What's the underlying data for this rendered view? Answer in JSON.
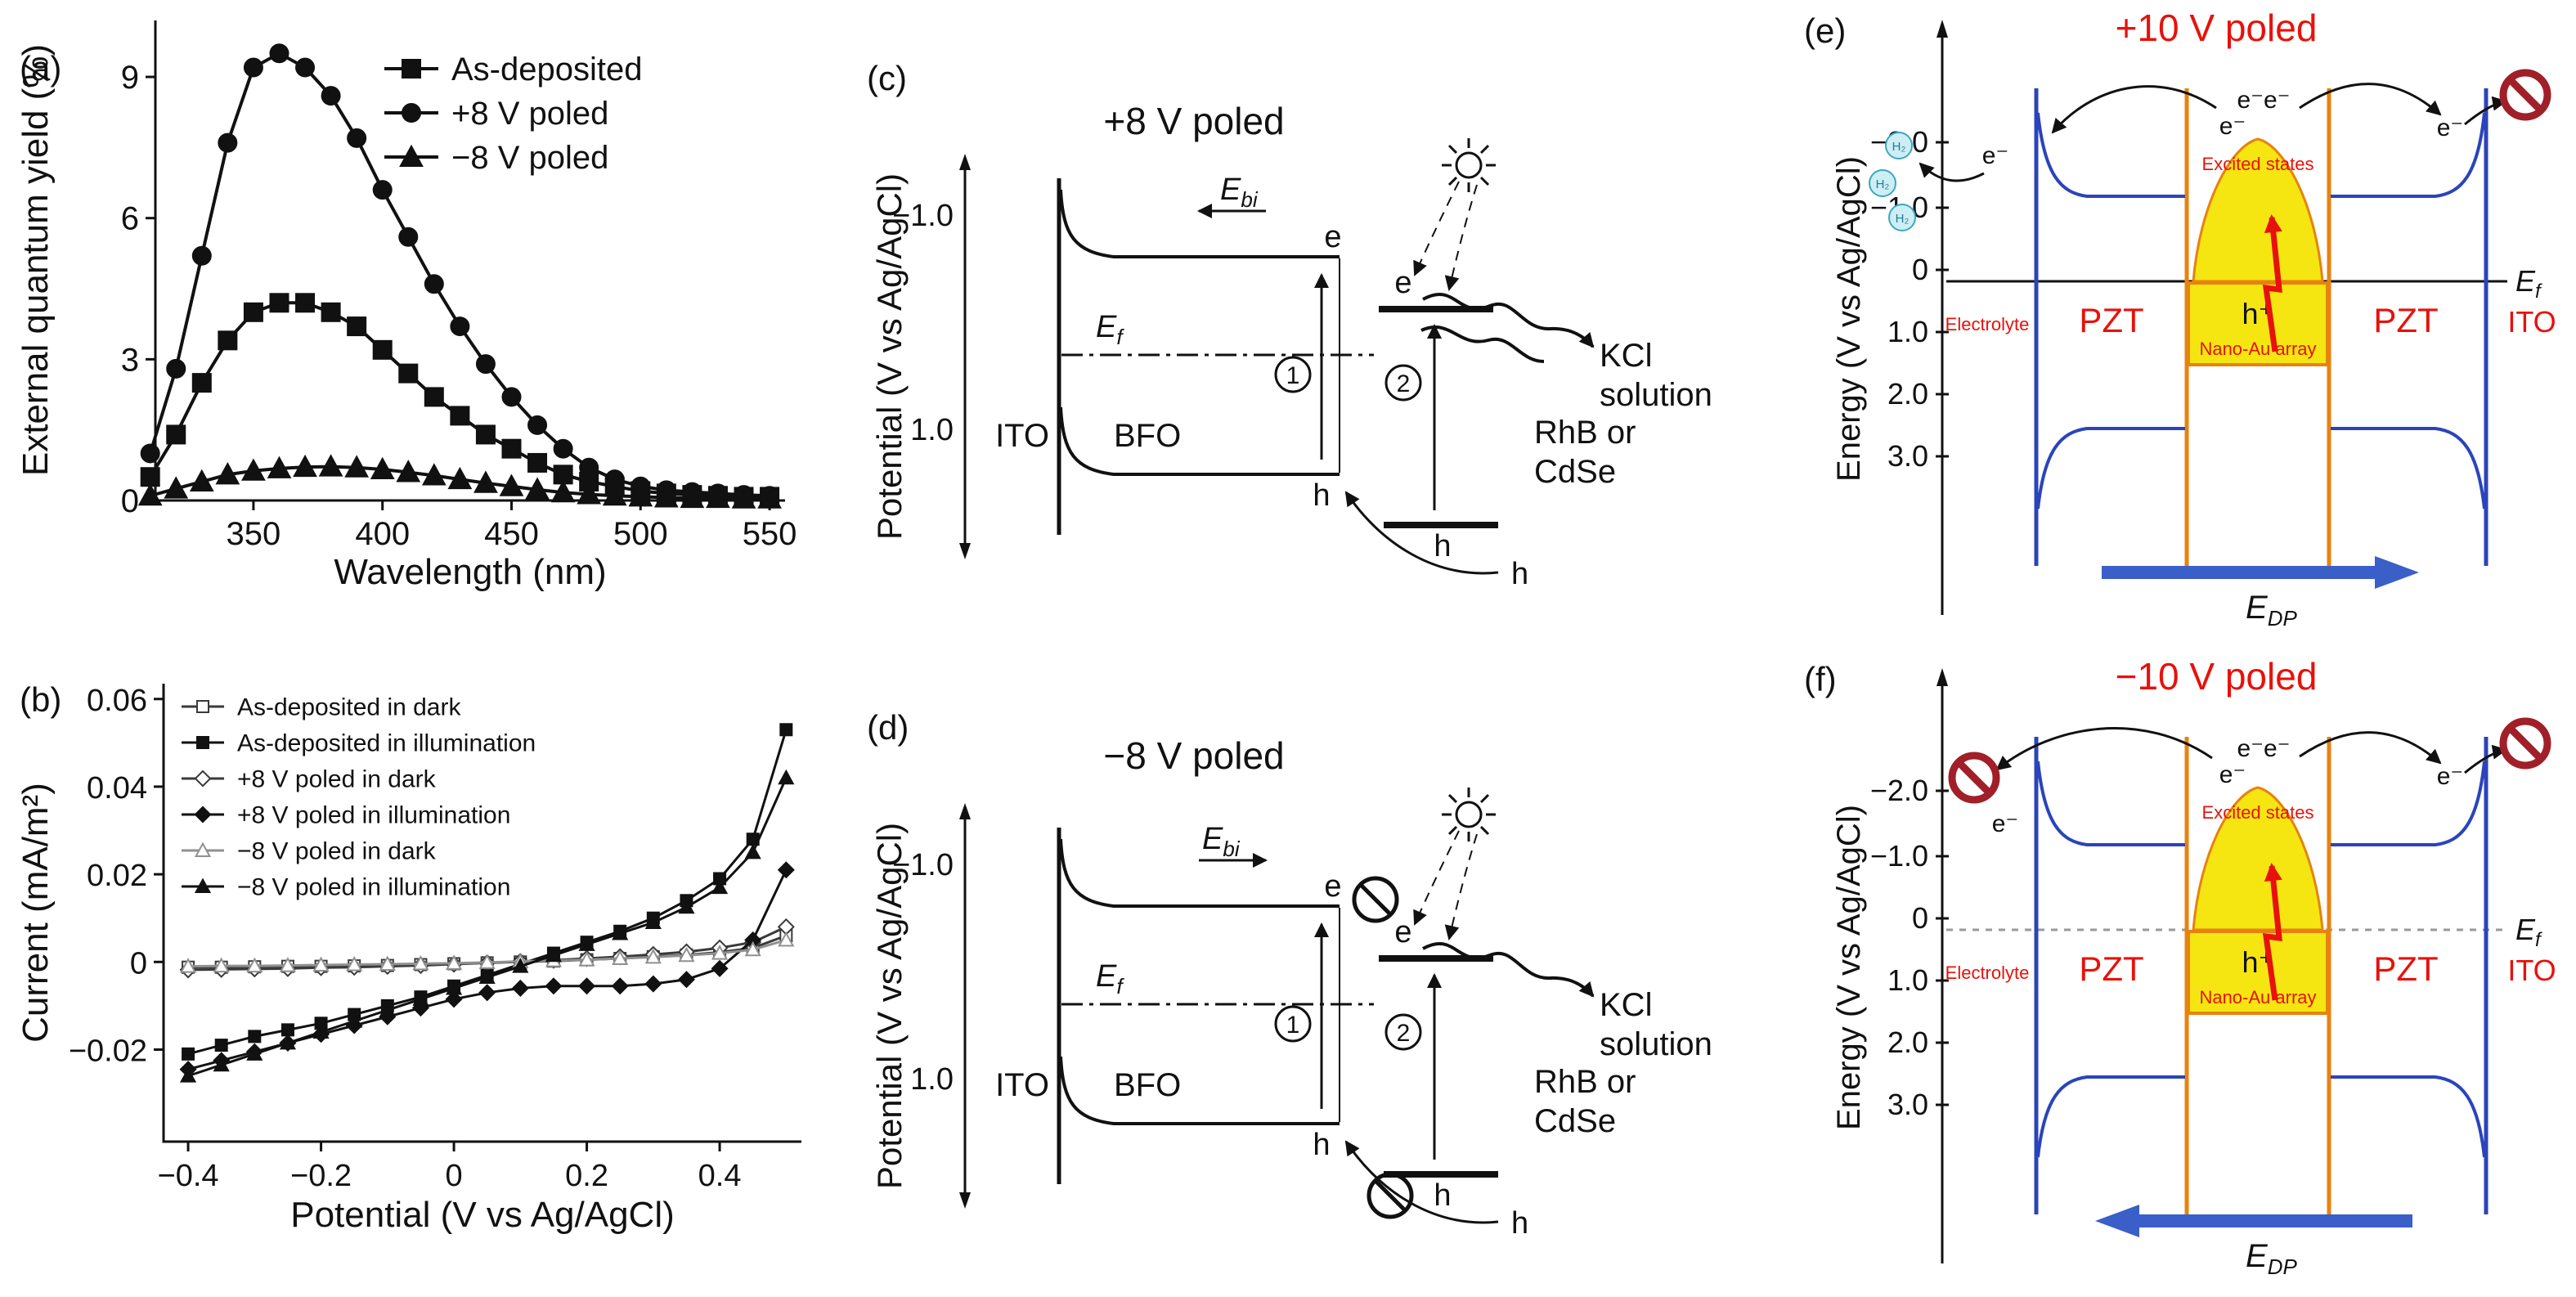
{
  "colors": {
    "accent_red": "#e8110b",
    "band_blue": "#2b44bb",
    "interface_orange": "#e8820f",
    "gold_yellow": "#f5e612",
    "no_entry_red": "#a11f28",
    "edp_arrow_blue": "#3a5fc8",
    "h2_bubble_fill": "#cdeef5",
    "ink": "#111111"
  },
  "panels": {
    "c": {
      "label": "(c)",
      "title": "+8 V poled",
      "y_axis": "Potential (V vs Ag/AgCl)",
      "tick_top": "−1.0",
      "tick_bottom": "1.0",
      "e_symbol": "E",
      "ebi_sub": "bi",
      "ef_sub": "f",
      "ito": "ITO",
      "bfo": "BFO",
      "electron": "e",
      "hole": "h",
      "step1": "1",
      "step2": "2",
      "acceptor_line1": "RhB or",
      "acceptor_line2": "CdSe",
      "solution_line1": "KCl",
      "solution_line2": "solution"
    },
    "d": {
      "label": "(d)",
      "title": "−8 V poled",
      "y_axis": "Potential (V vs Ag/AgCl)",
      "tick_top": "−1.0",
      "tick_bottom": "1.0",
      "e_symbol": "E",
      "ebi_sub": "bi",
      "ef_sub": "f",
      "ito": "ITO",
      "bfo": "BFO",
      "electron": "e",
      "hole": "h",
      "step1": "1",
      "step2": "2",
      "acceptor_line1": "RhB or",
      "acceptor_line2": "CdSe",
      "solution_line1": "KCl",
      "solution_line2": "solution"
    },
    "e": {
      "label": "(e)",
      "title": "+10 V poled",
      "y_axis": "Energy (V vs Ag/AgCl)",
      "ticks": [
        "−2.0",
        "−1.0",
        "0",
        "1.0",
        "2.0",
        "3.0"
      ],
      "e_symbol": "E",
      "ef_sub": "f",
      "edp_sub": "DP",
      "electron": "e⁻",
      "electron_pair": "e⁻e⁻",
      "h2": "H₂",
      "hplus": "h⁺",
      "excited": "Excited states",
      "nano": "Nano-Au array",
      "electrolyte": "Electrolyte",
      "pzt": "PZT",
      "ito": "ITO"
    },
    "f": {
      "label": "(f)",
      "title": "−10 V poled",
      "y_axis": "Energy (V vs Ag/AgCl)",
      "ticks": [
        "−2.0",
        "−1.0",
        "0",
        "1.0",
        "2.0",
        "3.0"
      ],
      "e_symbol": "E",
      "ef_sub": "f",
      "edp_sub": "DP",
      "electron": "e⁻",
      "electron_pair": "e⁻e⁻",
      "hplus": "h⁺",
      "excited": "Excited states",
      "nano": "Nano-Au array",
      "electrolyte": "Electrolyte",
      "pzt": "PZT",
      "ito": "ITO"
    }
  },
  "chart_data": [
    {
      "id": "panel-a",
      "type": "line",
      "panel_label": "(a)",
      "xlabel": "Wavelength (nm)",
      "ylabel": "External quantum yield (%)",
      "xlim": [
        312,
        556
      ],
      "ylim": [
        0,
        10.2
      ],
      "xtick_vals": [
        350,
        400,
        450,
        500,
        550
      ],
      "xtick_labels": [
        "350",
        "400",
        "450",
        "500",
        "550"
      ],
      "ytick_vals": [
        0,
        3,
        6,
        9
      ],
      "ytick_labels": [
        "0",
        "3",
        "6",
        "9"
      ],
      "legend_position": "top-right",
      "x": [
        310,
        320,
        330,
        340,
        350,
        360,
        370,
        380,
        390,
        400,
        410,
        420,
        430,
        440,
        450,
        460,
        470,
        480,
        490,
        500,
        510,
        520,
        530,
        540,
        550
      ],
      "series": [
        {
          "name": "As-deposited",
          "marker": "square",
          "filled": true,
          "color": "#111111",
          "lw": 4,
          "ms": 11,
          "values": [
            0.5,
            1.4,
            2.5,
            3.4,
            4.0,
            4.2,
            4.2,
            4.0,
            3.7,
            3.2,
            2.7,
            2.2,
            1.8,
            1.4,
            1.1,
            0.8,
            0.55,
            0.4,
            0.3,
            0.2,
            0.15,
            0.12,
            0.1,
            0.08,
            0.08
          ]
        },
        {
          "name": "+8 V poled",
          "marker": "circle",
          "filled": true,
          "color": "#111111",
          "lw": 4,
          "ms": 11,
          "values": [
            1.0,
            2.8,
            5.2,
            7.6,
            9.2,
            9.5,
            9.2,
            8.6,
            7.7,
            6.6,
            5.6,
            4.6,
            3.7,
            2.9,
            2.2,
            1.6,
            1.1,
            0.7,
            0.45,
            0.3,
            0.22,
            0.18,
            0.15,
            0.12,
            0.1
          ]
        },
        {
          "name": "−8 V poled",
          "marker": "triangle",
          "filled": true,
          "color": "#111111",
          "lw": 4,
          "ms": 11,
          "values": [
            0.1,
            0.25,
            0.4,
            0.55,
            0.63,
            0.68,
            0.71,
            0.72,
            0.7,
            0.66,
            0.6,
            0.53,
            0.45,
            0.37,
            0.3,
            0.23,
            0.17,
            0.13,
            0.1,
            0.08,
            0.06,
            0.05,
            0.05,
            0.04,
            0.04
          ]
        }
      ]
    },
    {
      "id": "panel-b",
      "type": "line",
      "panel_label": "(b)",
      "xlabel": "Potential (V vs Ag/AgCl)",
      "ylabel": "Current (mA/m²)",
      "xlim": [
        -0.437,
        0.523
      ],
      "ylim": [
        -0.041,
        0.0635
      ],
      "xtick_vals": [
        -0.4,
        -0.2,
        0,
        0.2,
        0.4
      ],
      "xtick_labels": [
        "−0.4",
        "−0.2",
        "0",
        "0.2",
        "0.4"
      ],
      "ytick_vals": [
        -0.02,
        0,
        0.02,
        0.04,
        0.06
      ],
      "ytick_labels": [
        "−0.02",
        "0",
        "0.02",
        "0.04",
        "0.06"
      ],
      "legend_position": "top-left",
      "x": [
        -0.4,
        -0.35,
        -0.3,
        -0.25,
        -0.2,
        -0.15,
        -0.1,
        -0.05,
        0,
        0.05,
        0.1,
        0.15,
        0.2,
        0.25,
        0.3,
        0.35,
        0.4,
        0.45,
        0.5
      ],
      "series": [
        {
          "name": "As-deposited in dark",
          "marker": "square",
          "filled": false,
          "color": "#3a3a3a",
          "lw": 3,
          "ms": 7,
          "values": [
            -0.0012,
            -0.0012,
            -0.0011,
            -0.001,
            -0.001,
            -0.0009,
            -0.0008,
            -0.0006,
            -0.0004,
            -0.0002,
            0,
            0.0002,
            0.0005,
            0.0008,
            0.0012,
            0.0016,
            0.0022,
            0.0032,
            0.006
          ]
        },
        {
          "name": "As-deposited in illumination",
          "marker": "square",
          "filled": true,
          "color": "#111111",
          "lw": 3,
          "ms": 7,
          "values": [
            -0.021,
            -0.019,
            -0.017,
            -0.0155,
            -0.014,
            -0.012,
            -0.01,
            -0.008,
            -0.0055,
            -0.003,
            -0.0005,
            0.002,
            0.0045,
            0.007,
            0.01,
            0.014,
            0.019,
            0.028,
            0.053
          ]
        },
        {
          "name": "+8 V poled in dark",
          "marker": "diamond",
          "filled": false,
          "color": "#3a3a3a",
          "lw": 3,
          "ms": 7,
          "values": [
            -0.0018,
            -0.0017,
            -0.0016,
            -0.0015,
            -0.0013,
            -0.0012,
            -0.001,
            -0.0008,
            -0.0005,
            -0.0002,
            0.0001,
            0.0004,
            0.0008,
            0.0012,
            0.0017,
            0.0023,
            0.0032,
            0.0045,
            0.008
          ]
        },
        {
          "name": "+8 V poled in illumination",
          "marker": "diamond",
          "filled": true,
          "color": "#111111",
          "lw": 3,
          "ms": 7,
          "values": [
            -0.0245,
            -0.0225,
            -0.0205,
            -0.0185,
            -0.0165,
            -0.0145,
            -0.0125,
            -0.0105,
            -0.0085,
            -0.007,
            -0.006,
            -0.0055,
            -0.0055,
            -0.0055,
            -0.005,
            -0.004,
            -0.0015,
            0.005,
            0.021
          ]
        },
        {
          "name": "−8 V poled in dark",
          "marker": "triangle",
          "filled": false,
          "color": "#909090",
          "lw": 3,
          "ms": 7,
          "values": [
            -0.001,
            -0.0009,
            -0.0009,
            -0.0008,
            -0.0007,
            -0.0006,
            -0.0005,
            -0.0004,
            -0.0003,
            -0.0001,
            0.0001,
            0.0003,
            0.0005,
            0.0008,
            0.0011,
            0.0015,
            0.002,
            0.0028,
            0.005
          ]
        },
        {
          "name": "−8 V poled in illumination",
          "marker": "triangle",
          "filled": true,
          "color": "#111111",
          "lw": 3,
          "ms": 7,
          "values": [
            -0.026,
            -0.0235,
            -0.021,
            -0.0185,
            -0.016,
            -0.0135,
            -0.011,
            -0.0085,
            -0.006,
            -0.0035,
            -0.001,
            0.0015,
            0.004,
            0.0065,
            0.009,
            0.0125,
            0.017,
            0.025,
            0.042
          ]
        }
      ]
    }
  ]
}
